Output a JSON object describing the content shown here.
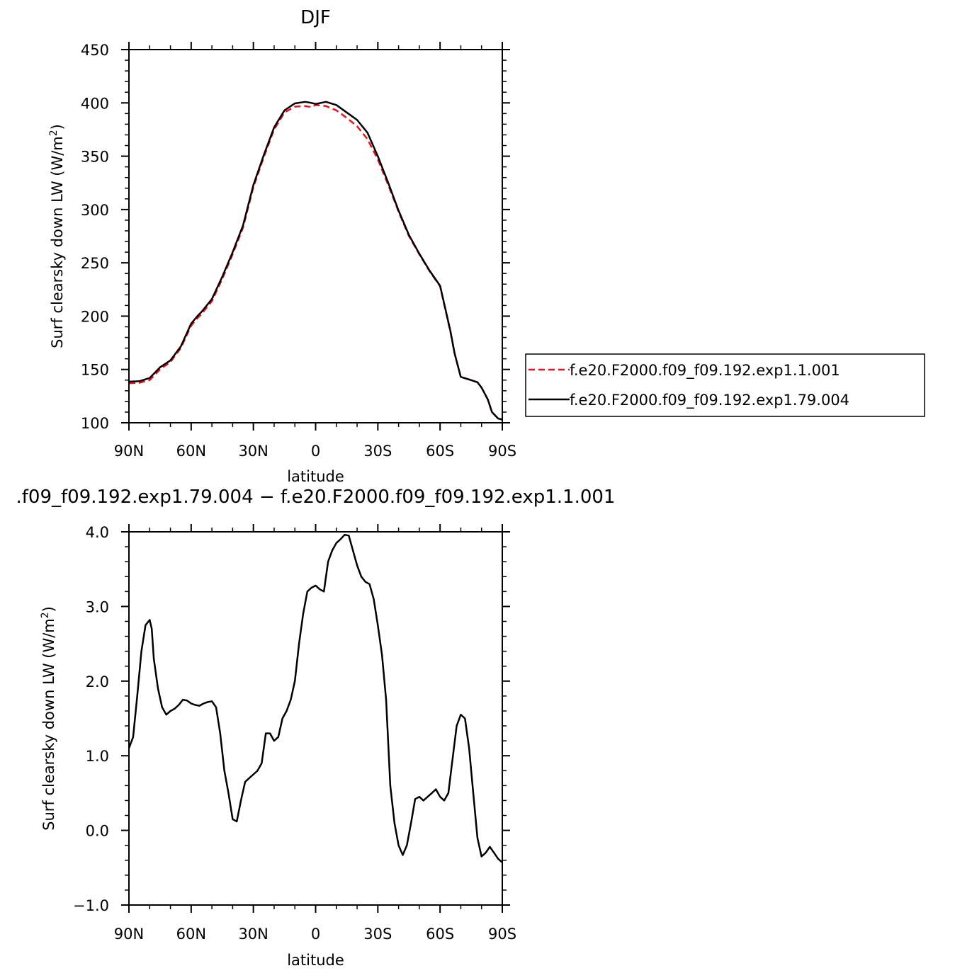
{
  "chart_data": [
    {
      "type": "line",
      "title": "DJF",
      "xlabel": "latitude",
      "ylabel": "Surf clearsky down LW (W/m²)",
      "ylabel_main": "Surf clearsky down LW (W/m",
      "ylabel_sup": "2",
      "ylabel_tail": ")",
      "xlim": [
        -90,
        90
      ],
      "ylim": [
        100,
        450
      ],
      "xticks": [
        {
          "value": -90,
          "label": "90N"
        },
        {
          "value": -60,
          "label": "60N"
        },
        {
          "value": -30,
          "label": "30N"
        },
        {
          "value": 0,
          "label": "0"
        },
        {
          "value": 30,
          "label": "30S"
        },
        {
          "value": 60,
          "label": "60S"
        },
        {
          "value": 90,
          "label": "90S"
        }
      ],
      "yticks": [
        {
          "value": 100,
          "label": "100"
        },
        {
          "value": 150,
          "label": "150"
        },
        {
          "value": 200,
          "label": "200"
        },
        {
          "value": 250,
          "label": "250"
        },
        {
          "value": 300,
          "label": "300"
        },
        {
          "value": 350,
          "label": "350"
        },
        {
          "value": 400,
          "label": "400"
        },
        {
          "value": 450,
          "label": "450"
        }
      ],
      "legend": "right",
      "series": [
        {
          "name": "f.e20.F2000.f09_f09.192.exp1.1.001",
          "color": "#e8131b",
          "dash": "dashed",
          "x": [
            -90,
            -85,
            -80,
            -75,
            -70,
            -65,
            -60,
            -57,
            -55,
            -50,
            -45,
            -40,
            -35,
            -30,
            -25,
            -20,
            -15,
            -10,
            -5,
            -2,
            0,
            5,
            10,
            15,
            20,
            25,
            30,
            35,
            40,
            45,
            50,
            55,
            60,
            65,
            67,
            70,
            75,
            78,
            80,
            83,
            85,
            88,
            90
          ],
          "y": [
            137,
            137.5,
            140,
            150,
            157,
            170,
            191,
            198,
            202,
            214,
            235,
            258,
            283,
            321,
            349,
            375,
            391,
            396.5,
            397,
            396,
            398,
            397,
            393,
            386,
            378,
            366,
            347,
            323,
            298,
            275,
            258,
            242,
            228,
            185,
            165,
            143,
            140,
            138,
            133,
            122,
            110,
            104,
            103
          ]
        },
        {
          "name": "f.e20.F2000.f09_f09.192.exp1.79.004",
          "color": "#000000",
          "dash": "solid",
          "x": [
            -90,
            -85,
            -80,
            -75,
            -70,
            -65,
            -60,
            -57,
            -55,
            -50,
            -45,
            -40,
            -35,
            -30,
            -25,
            -20,
            -15,
            -10,
            -5,
            -2,
            0,
            5,
            10,
            15,
            20,
            25,
            30,
            35,
            40,
            45,
            50,
            55,
            60,
            65,
            67,
            70,
            75,
            78,
            80,
            83,
            85,
            88,
            90
          ],
          "y": [
            138.5,
            139,
            142,
            152,
            158.5,
            171.5,
            193,
            200,
            204,
            216,
            237,
            260,
            285,
            323,
            351,
            377,
            393,
            399.5,
            401,
            400,
            399,
            401,
            398,
            391,
            384,
            372,
            350,
            325,
            299,
            276,
            258.5,
            242.5,
            228.5,
            186,
            165,
            143,
            140,
            138,
            133,
            122,
            110,
            104,
            103
          ]
        }
      ]
    },
    {
      "type": "line",
      "title": ".f09_f09.192.exp1.79.004 − f.e20.F2000.f09_f09.192.exp1.1.001",
      "xlabel": "latitude",
      "ylabel": "Surf clearsky down LW (W/m²)",
      "ylabel_main": "Surf clearsky down LW (W/m",
      "ylabel_sup": "2",
      "ylabel_tail": ")",
      "xlim": [
        -90,
        90
      ],
      "ylim": [
        -1.0,
        4.0
      ],
      "xticks": [
        {
          "value": -90,
          "label": "90N"
        },
        {
          "value": -60,
          "label": "60N"
        },
        {
          "value": -30,
          "label": "30N"
        },
        {
          "value": 0,
          "label": "0"
        },
        {
          "value": 30,
          "label": "30S"
        },
        {
          "value": 60,
          "label": "60S"
        },
        {
          "value": 90,
          "label": "90S"
        }
      ],
      "yticks": [
        {
          "value": -1.0,
          "label": "−1.0"
        },
        {
          "value": 0.0,
          "label": "0.0"
        },
        {
          "value": 1.0,
          "label": "1.0"
        },
        {
          "value": 2.0,
          "label": "2.0"
        },
        {
          "value": 3.0,
          "label": "3.0"
        },
        {
          "value": 4.0,
          "label": "4.0"
        }
      ],
      "series": [
        {
          "name": "",
          "color": "#000000",
          "dash": "solid",
          "x": [
            -90,
            -88,
            -86,
            -84,
            -82,
            -80,
            -79,
            -78,
            -76,
            -74,
            -72,
            -70,
            -68,
            -66,
            -64,
            -62,
            -60,
            -58,
            -56,
            -54,
            -52,
            -50,
            -48,
            -46,
            -44,
            -42,
            -40,
            -38,
            -36,
            -34,
            -32,
            -30,
            -28,
            -26,
            -24,
            -22,
            -20,
            -18,
            -16,
            -14,
            -12,
            -10,
            -8,
            -6,
            -4,
            -2,
            0,
            2,
            4,
            6,
            8,
            10,
            12,
            14,
            16,
            18,
            20,
            22,
            24,
            26,
            28,
            30,
            32,
            34,
            36,
            38,
            40,
            42,
            44,
            46,
            48,
            50,
            52,
            54,
            56,
            58,
            60,
            62,
            64,
            66,
            68,
            70,
            72,
            74,
            76,
            78,
            80,
            82,
            84,
            86,
            88,
            90
          ],
          "y": [
            1.1,
            1.25,
            1.8,
            2.4,
            2.75,
            2.82,
            2.7,
            2.3,
            1.9,
            1.65,
            1.55,
            1.6,
            1.63,
            1.68,
            1.75,
            1.74,
            1.7,
            1.68,
            1.67,
            1.7,
            1.72,
            1.73,
            1.65,
            1.3,
            0.8,
            0.5,
            0.15,
            0.12,
            0.4,
            0.65,
            0.7,
            0.75,
            0.8,
            0.9,
            1.3,
            1.3,
            1.2,
            1.25,
            1.5,
            1.6,
            1.75,
            2.0,
            2.5,
            2.9,
            3.2,
            3.25,
            3.28,
            3.23,
            3.2,
            3.6,
            3.75,
            3.85,
            3.9,
            3.96,
            3.95,
            3.75,
            3.55,
            3.4,
            3.33,
            3.3,
            3.1,
            2.75,
            2.35,
            1.75,
            0.6,
            0.1,
            -0.2,
            -0.33,
            -0.2,
            0.1,
            0.42,
            0.45,
            0.4,
            0.45,
            0.5,
            0.55,
            0.45,
            0.4,
            0.5,
            0.95,
            1.4,
            1.55,
            1.5,
            1.1,
            0.5,
            -0.1,
            -0.35,
            -0.3,
            -0.22,
            -0.3,
            -0.38,
            -0.43
          ]
        }
      ]
    }
  ]
}
